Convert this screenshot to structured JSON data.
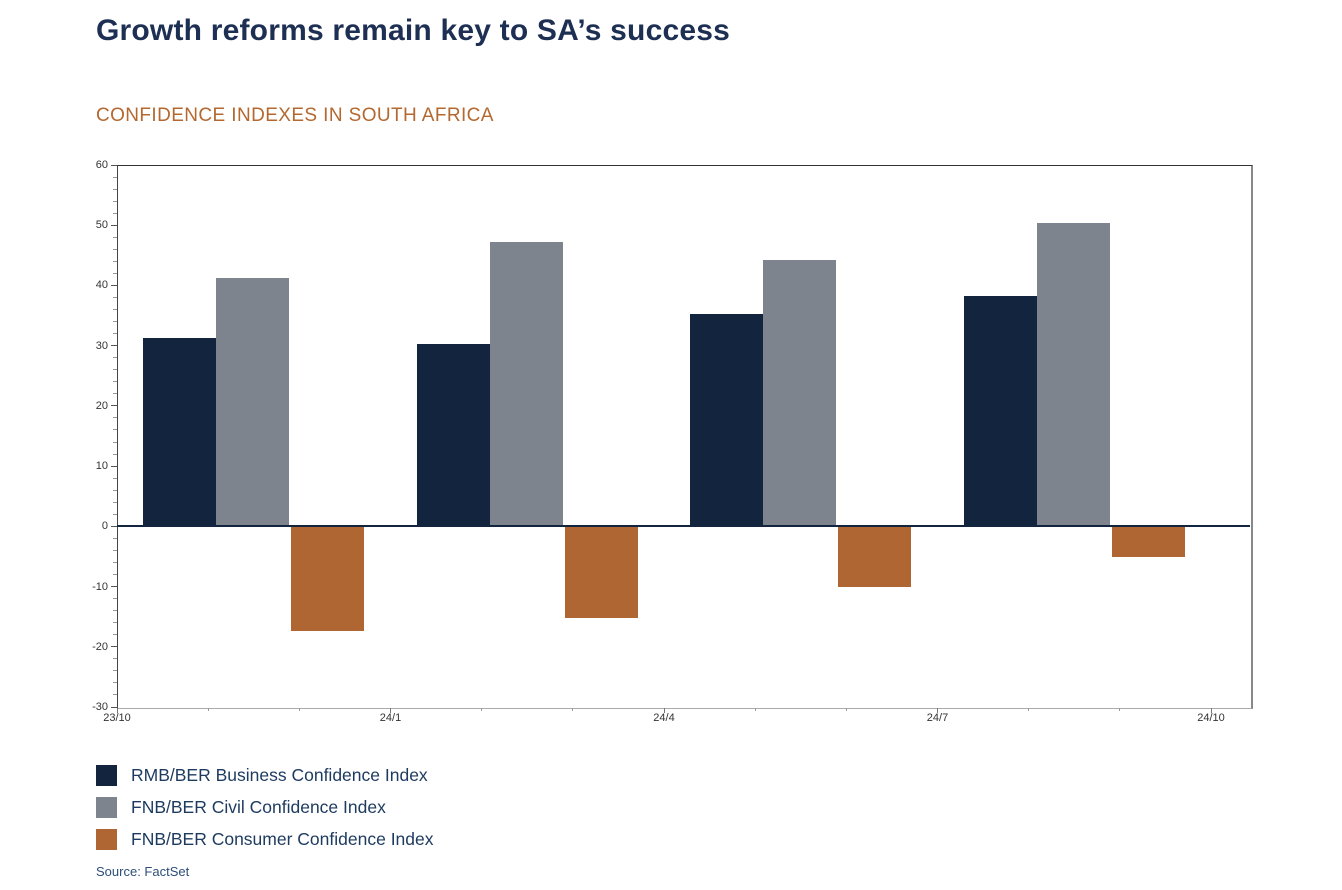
{
  "page": {
    "title": "Growth reforms remain key to SA’s success",
    "subtitle": "CONFIDENCE INDEXES IN SOUTH AFRICA",
    "source": "Source: FactSet"
  },
  "colors": {
    "title_text": "#1d2f52",
    "subtitle_text": "#b4682f",
    "legend_text": "#1d3a5f",
    "source_text": "#2d4e79",
    "axis_text": "#333333",
    "zero_line": "#13243f"
  },
  "chart_data": {
    "type": "bar",
    "title": "CONFIDENCE INDEXES IN SOUTH AFRICA",
    "categories": [
      "23/Q4",
      "24/Q1",
      "24/Q2",
      "24/Q3"
    ],
    "x_tick_labels": [
      "23/10",
      "24/1",
      "24/4",
      "24/7",
      "24/10"
    ],
    "series": [
      {
        "name": "RMB/BER Business Confidence Index",
        "color": "#13243f",
        "values": [
          31.2,
          30.3,
          35.2,
          38.2
        ]
      },
      {
        "name": "FNB/BER Civil Confidence Index",
        "color": "#7d848d",
        "values": [
          41.3,
          47.2,
          44.2,
          50.3
        ]
      },
      {
        "name": "FNB/BER Consumer Confidence Index",
        "color": "#b06632",
        "values": [
          -17.4,
          -15.2,
          -10.1,
          -5.1
        ]
      }
    ],
    "ylim": [
      -30,
      60
    ],
    "y_ticks": [
      60,
      50,
      40,
      30,
      20,
      10,
      0,
      -10,
      -20,
      -30
    ],
    "y_minor_step": 2,
    "grid": false,
    "legend_position": "bottom-left",
    "source": "Source: FactSet"
  }
}
